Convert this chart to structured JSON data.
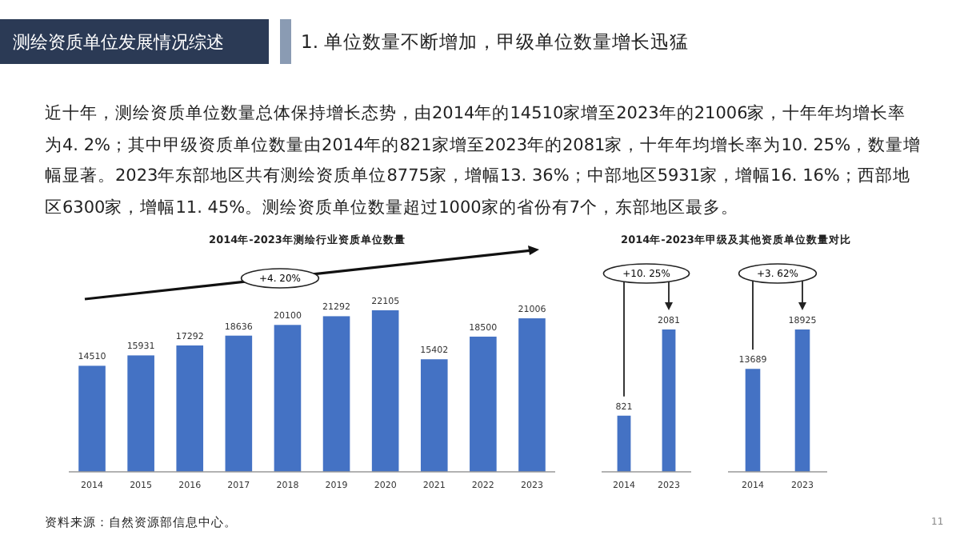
{
  "chart_data": [
    {
      "type": "other",
      "title": "测绘资质单位发展情况综述",
      "subtitle": "1.  单位数量不断增加，甲级单位数量增长迅猛",
      "annotations": [
        "近十年，测绘资质单位数量总体保持增长态势，由2014年的14510家增至2023年的21006家，十年年均增长率为4. 2%；其中甲级资质单位数量由2014年的821家增至2023年的2081家，十年年均增长率为10. 25%，数量增幅显著。2023年东部地区共有测绘资质单位8775家，增幅13. 36%；中部地区5931家，增幅16. 16%；西部地区6300家，增幅11. 45%。测绘资质单位数量超过1000家的省份有7个，东部地区最多。",
        "资料来源：自然资源部信息中心。",
        "11"
      ]
    },
    {
      "type": "bar",
      "title": "2014年-2023年测绘行业资质单位数量",
      "categories": [
        "2014",
        "2015",
        "2016",
        "2017",
        "2018",
        "2019",
        "2020",
        "2021",
        "2022",
        "2023"
      ],
      "values": [
        14510,
        15931,
        17292,
        18636,
        20100,
        21292,
        22105,
        15402,
        18500,
        21006
      ],
      "color": "#4472c4",
      "data_labels": true,
      "annotations": [
        "+4. 20%"
      ]
    },
    {
      "type": "bar",
      "title": "2014年-2023年甲级及其他资质单位数量对比",
      "categories": [
        "2014",
        "2023"
      ],
      "values": [
        821,
        2081
      ],
      "color": "#4472c4",
      "data_labels": true,
      "annotations": [
        "+10. 25%"
      ]
    },
    {
      "type": "bar",
      "categories": [
        "2014",
        "2023"
      ],
      "values": [
        13689,
        18925
      ],
      "color": "#4472c4",
      "data_labels": true,
      "annotations": [
        "+3. 62%"
      ]
    }
  ]
}
